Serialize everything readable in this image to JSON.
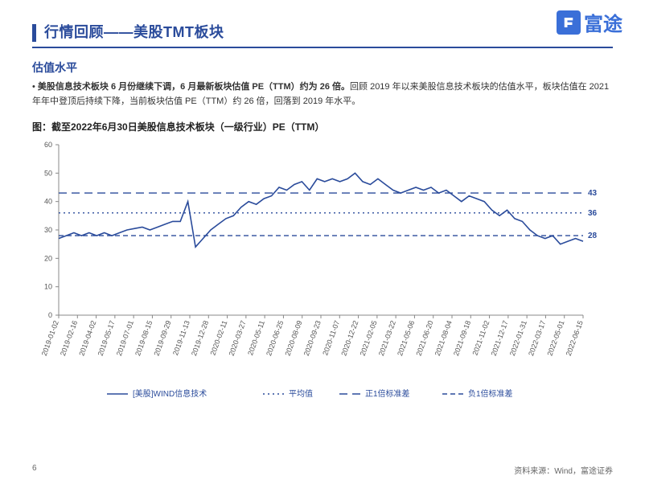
{
  "logo": {
    "brand": "富途",
    "icon_bg": "#3a6fd8"
  },
  "title": "行情回顾——美股TMT板块",
  "subtitle": "估值水平",
  "body": {
    "bold_lead": "美股信息技术板块 6 月份继续下调，6 月最新板块估值 PE（TTM）约为 26 倍。",
    "rest": "回顾 2019 年以来美股信息技术板块的估值水平，板块估值在 2021 年年中登顶后持续下降，当前板块估值 PE（TTM）约 26 倍，回落到 2019 年水平。"
  },
  "chart": {
    "caption": "图：截至2022年6月30日美股信息技术板块（一级行业）PE（TTM）",
    "type": "line",
    "ylim": [
      0,
      60
    ],
    "ytick_step": 10,
    "x_labels": [
      "2019-01-02",
      "2019-02-16",
      "2019-04-02",
      "2019-05-17",
      "2019-07-01",
      "2019-08-15",
      "2019-09-29",
      "2019-11-13",
      "2019-12-28",
      "2020-02-11",
      "2020-03-27",
      "2020-05-11",
      "2020-06-25",
      "2020-08-09",
      "2020-09-23",
      "2020-11-07",
      "2020-12-22",
      "2021-02-05",
      "2021-03-22",
      "2021-05-06",
      "2021-06-20",
      "2021-08-04",
      "2021-09-18",
      "2021-11-02",
      "2021-12-17",
      "2022-01-31",
      "2022-03-17",
      "2022-05-01",
      "2022-06-15"
    ],
    "series": {
      "name": "[美股]WIND信息技术",
      "color": "#2a4b9b",
      "line_width": 1.6,
      "values": [
        27,
        28,
        29,
        28,
        29,
        28,
        29,
        28,
        29,
        30,
        30.5,
        31,
        30,
        31,
        32,
        33,
        33,
        40,
        24,
        27,
        30,
        32,
        34,
        35,
        38,
        40,
        39,
        41,
        42,
        45,
        44,
        46,
        47,
        44,
        48,
        47,
        48,
        47,
        48,
        50,
        47,
        46,
        48,
        46,
        44,
        43,
        44,
        45,
        44,
        45,
        43,
        44,
        42,
        40,
        42,
        41,
        40,
        37,
        35,
        37,
        34,
        33,
        30,
        28,
        27,
        28,
        25,
        26,
        27,
        26
      ]
    },
    "ref_lines": [
      {
        "name": "正1倍标准差",
        "value": 43,
        "style": "long-dash",
        "color": "#2a4b9b"
      },
      {
        "name": "平均值",
        "value": 36,
        "style": "dotted",
        "color": "#2a4b9b"
      },
      {
        "name": "负1倍标准差",
        "value": 28,
        "style": "short-dash",
        "color": "#2a4b9b"
      }
    ],
    "legend": [
      "[美股]WIND信息技术",
      "平均值",
      "正1倍标准差",
      "负1倍标准差"
    ],
    "background": "#ffffff",
    "axis_color": "#888888",
    "xlabel_fontsize": 9,
    "ylabel_fontsize": 9
  },
  "footer": {
    "page": "6",
    "source": "资料来源：Wind，富途证券"
  },
  "colors": {
    "brand": "#2a4b9b",
    "text": "#333333",
    "muted": "#666666"
  }
}
